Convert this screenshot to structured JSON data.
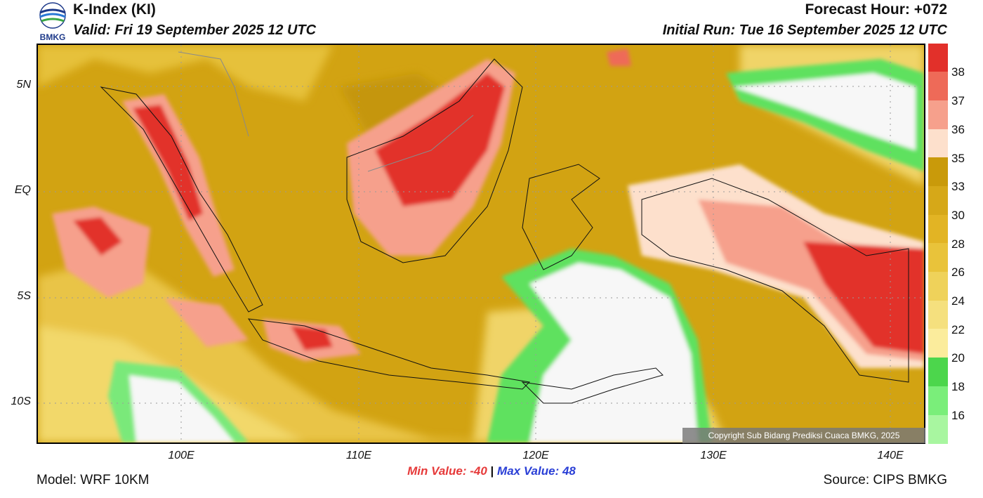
{
  "header": {
    "title": "K-Index (KI)",
    "valid": "Valid: Fri 19 September 2025 12 UTC",
    "forecast_hour": "Forecast Hour: +072",
    "initial_run": "Initial Run: Tue 16 September 2025 12 UTC",
    "logo_text": "BMKG"
  },
  "map": {
    "lat_labels": [
      "5N",
      "EQ",
      "5S",
      "10S"
    ],
    "lon_labels": [
      "100E",
      "110E",
      "120E",
      "130E",
      "140E"
    ],
    "copyright": "Copyright Sub Bidang Prediksi Cuaca BMKG, 2025"
  },
  "colorbar": {
    "labels": [
      "38",
      "37",
      "36",
      "35",
      "33",
      "30",
      "28",
      "26",
      "24",
      "22",
      "20",
      "18",
      "16"
    ],
    "colors": [
      "#e2302a",
      "#ee6a58",
      "#f6a08c",
      "#fde0cc",
      "#c99a0a",
      "#d6a818",
      "#e2b424",
      "#e9c33a",
      "#efd25a",
      "#f5e07e",
      "#fbec9c",
      "#4cd64c",
      "#7aee7a",
      "#a8f6a0"
    ]
  },
  "footer": {
    "min_label": "Min Value: -40",
    "separator": "|",
    "max_label": "Max Value:  48",
    "model": "Model: WRF 10KM",
    "source": "Source: CIPS BMKG"
  }
}
